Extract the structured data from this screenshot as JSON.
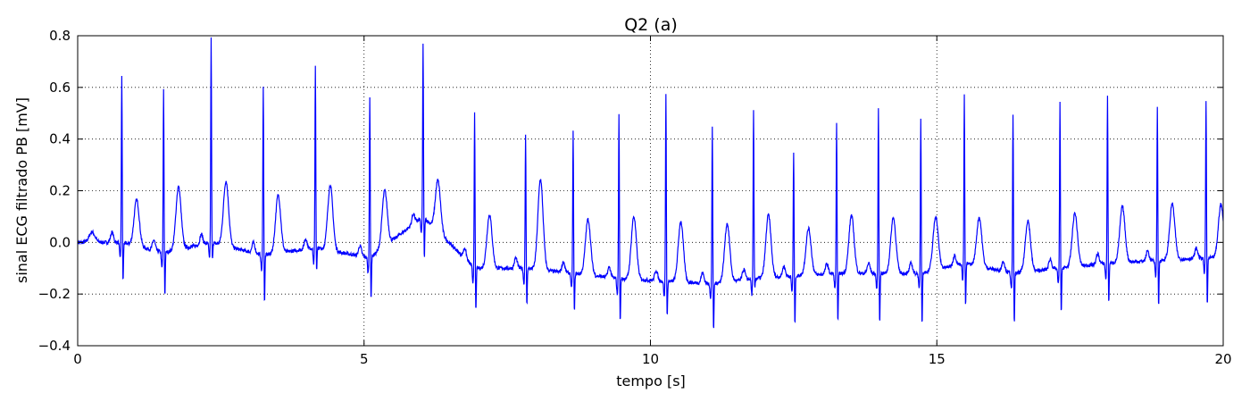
{
  "chart_data": {
    "type": "line",
    "title": "Q2 (a)",
    "xlabel": "tempo [s]",
    "ylabel": "sinal ECG filtrado PB [mV]",
    "xlim": [
      0,
      20
    ],
    "ylim": [
      -0.4,
      0.8
    ],
    "xticks": [
      0,
      5,
      10,
      15,
      20
    ],
    "yticks": [
      -0.4,
      -0.2,
      0.0,
      0.2,
      0.4,
      0.6,
      0.8
    ],
    "xtick_labels": [
      "0",
      "5",
      "10",
      "15",
      "20"
    ],
    "ytick_labels": [
      "−0.4",
      "−0.2",
      "0.0",
      "0.2",
      "0.4",
      "0.6",
      "0.8"
    ],
    "grid": true,
    "series_color": "#0000ff",
    "series": [
      {
        "beats": [
          {
            "t": 0.77,
            "r": 0.65,
            "s": -0.17,
            "t_amp": 0.2,
            "base": 0.0
          },
          {
            "t": 1.5,
            "r": 0.59,
            "s": -0.23,
            "t_amp": 0.23,
            "base": -0.04
          },
          {
            "t": 2.33,
            "r": 0.79,
            "s": -0.08,
            "t_amp": 0.28,
            "base": 0.0
          },
          {
            "t": 3.24,
            "r": 0.61,
            "s": -0.26,
            "t_amp": 0.2,
            "base": -0.05
          },
          {
            "t": 4.15,
            "r": 0.69,
            "s": -0.12,
            "t_amp": 0.26,
            "base": -0.02
          },
          {
            "t": 5.1,
            "r": 0.57,
            "s": -0.25,
            "t_amp": 0.18,
            "base": -0.06
          },
          {
            "t": 6.03,
            "r": 0.77,
            "s": -0.08,
            "t_amp": 0.32,
            "base": 0.1
          },
          {
            "t": 6.93,
            "r": 0.5,
            "s": -0.29,
            "t_amp": 0.13,
            "base": -0.1
          },
          {
            "t": 7.82,
            "r": 0.42,
            "s": -0.26,
            "t_amp": 0.29,
            "base": -0.1
          },
          {
            "t": 8.65,
            "r": 0.43,
            "s": -0.29,
            "t_amp": 0.12,
            "base": -0.12
          },
          {
            "t": 9.45,
            "r": 0.5,
            "s": -0.33,
            "t_amp": 0.13,
            "base": -0.14
          },
          {
            "t": 10.27,
            "r": 0.58,
            "s": -0.31,
            "t_amp": 0.11,
            "base": -0.15
          },
          {
            "t": 11.08,
            "r": 0.45,
            "s": -0.37,
            "t_amp": 0.09,
            "base": -0.16
          },
          {
            "t": 11.8,
            "r": 0.51,
            "s": -0.18,
            "t_amp": 0.13,
            "base": -0.14
          },
          {
            "t": 12.5,
            "r": 0.35,
            "s": -0.34,
            "t_amp": 0.07,
            "base": -0.13
          },
          {
            "t": 13.25,
            "r": 0.46,
            "s": -0.34,
            "t_amp": 0.13,
            "base": -0.12
          },
          {
            "t": 13.98,
            "r": 0.52,
            "s": -0.34,
            "t_amp": 0.12,
            "base": -0.12
          },
          {
            "t": 14.72,
            "r": 0.48,
            "s": -0.34,
            "t_amp": 0.11,
            "base": -0.12
          },
          {
            "t": 15.48,
            "r": 0.57,
            "s": -0.27,
            "t_amp": 0.13,
            "base": -0.08
          },
          {
            "t": 16.33,
            "r": 0.5,
            "s": -0.34,
            "t_amp": 0.1,
            "base": -0.12
          },
          {
            "t": 17.15,
            "r": 0.54,
            "s": -0.3,
            "t_amp": 0.13,
            "base": -0.1
          },
          {
            "t": 17.98,
            "r": 0.57,
            "s": -0.26,
            "t_amp": 0.16,
            "base": -0.08
          },
          {
            "t": 18.85,
            "r": 0.52,
            "s": -0.27,
            "t_amp": 0.17,
            "base": -0.07
          },
          {
            "t": 19.7,
            "r": 0.55,
            "s": -0.27,
            "t_amp": 0.17,
            "base": -0.06
          }
        ]
      }
    ]
  }
}
